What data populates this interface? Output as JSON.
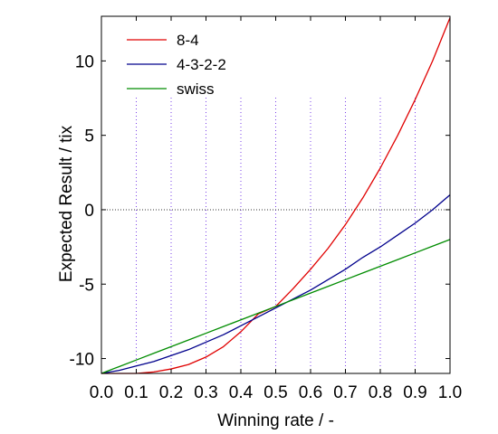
{
  "chart_data": {
    "type": "line",
    "xlabel": "Winning rate / -",
    "ylabel": "Expected Result / tix",
    "xlim": [
      0.0,
      1.0
    ],
    "ylim": [
      -11,
      13
    ],
    "x_ticks": [
      0.0,
      0.1,
      0.2,
      0.3,
      0.4,
      0.5,
      0.6,
      0.7,
      0.8,
      0.9,
      1.0
    ],
    "x_tick_labels": [
      "0.0",
      "0.1",
      "0.2",
      "0.3",
      "0.4",
      "0.5",
      "0.6",
      "0.7",
      "0.8",
      "0.9",
      "1.0"
    ],
    "y_ticks": [
      -10,
      -5,
      0,
      5,
      10
    ],
    "y_tick_labels": [
      "-10",
      "-5",
      "0",
      "5",
      "10"
    ],
    "grid": "vertical dotted lines at x = 0.1 through 0.9",
    "reference_line": {
      "y": 0,
      "style": "dotted"
    },
    "legend_position": "top-left",
    "x": [
      0.0,
      0.05,
      0.1,
      0.15,
      0.2,
      0.25,
      0.3,
      0.35,
      0.4,
      0.45,
      0.5,
      0.55,
      0.6,
      0.65,
      0.7,
      0.75,
      0.8,
      0.85,
      0.9,
      0.95,
      1.0
    ],
    "series": [
      {
        "name": "8-4",
        "color": "#e00000",
        "values": [
          -11.0,
          -11.0,
          -11.0,
          -10.9,
          -10.7,
          -10.4,
          -9.9,
          -9.2,
          -8.2,
          -7.0,
          -6.5,
          -5.3,
          -4.0,
          -2.6,
          -1.0,
          0.8,
          2.8,
          5.0,
          7.4,
          10.0,
          12.9
        ]
      },
      {
        "name": "4-3-2-2",
        "color": "#00008c",
        "values": [
          -11.0,
          -10.8,
          -10.5,
          -10.2,
          -9.8,
          -9.4,
          -8.9,
          -8.4,
          -7.8,
          -7.2,
          -6.6,
          -6.0,
          -5.4,
          -4.7,
          -4.0,
          -3.2,
          -2.5,
          -1.7,
          -0.9,
          0.0,
          1.0
        ]
      },
      {
        "name": "swiss",
        "color": "#008c00",
        "values": [
          -11.0,
          -10.55,
          -10.1,
          -9.65,
          -9.2,
          -8.75,
          -8.3,
          -7.85,
          -7.4,
          -6.95,
          -6.5,
          -6.05,
          -5.6,
          -5.15,
          -4.7,
          -4.25,
          -3.8,
          -3.35,
          -2.9,
          -2.45,
          -2.0
        ]
      }
    ]
  }
}
